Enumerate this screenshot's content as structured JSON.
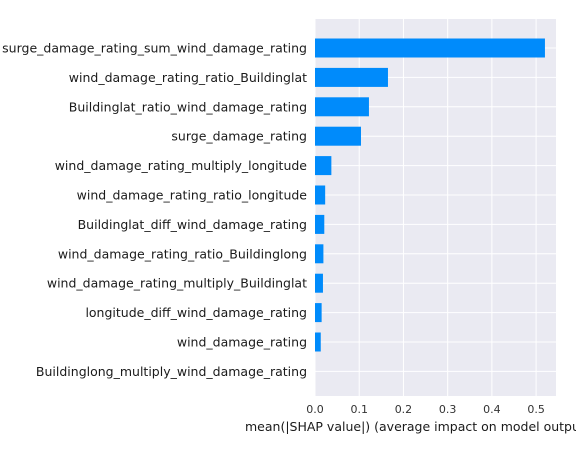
{
  "chart_data": {
    "type": "bar",
    "orientation": "horizontal",
    "categories": [
      "surge_damage_rating_sum_wind_damage_rating",
      "wind_damage_rating_ratio_Buildinglat",
      "Buildinglat_ratio_wind_damage_rating",
      "surge_damage_rating",
      "wind_damage_rating_multiply_longitude",
      "wind_damage_rating_ratio_longitude",
      "Buildinglat_diff_wind_damage_rating",
      "wind_damage_rating_ratio_Buildinglong",
      "wind_damage_rating_multiply_Buildinglat",
      "longitude_diff_wind_damage_rating",
      "wind_damage_rating",
      "Buildinglong_multiply_wind_damage_rating"
    ],
    "values": [
      0.52,
      0.165,
      0.122,
      0.104,
      0.037,
      0.023,
      0.021,
      0.019,
      0.018,
      0.015,
      0.013,
      0.0
    ],
    "xlabel": "mean(|SHAP value|) (average impact on model output ma",
    "ylabel": "",
    "xlim": [
      0,
      0.545
    ],
    "xticks": [
      0.0,
      0.1,
      0.2,
      0.3,
      0.4,
      0.5
    ],
    "xtick_labels": [
      "0.0",
      "0.1",
      "0.2",
      "0.3",
      "0.4",
      "0.5"
    ],
    "grid": true,
    "colors": {
      "bar": "#008bfb",
      "plot_background": "#eaeaf2",
      "grid": "#ffffff"
    }
  }
}
